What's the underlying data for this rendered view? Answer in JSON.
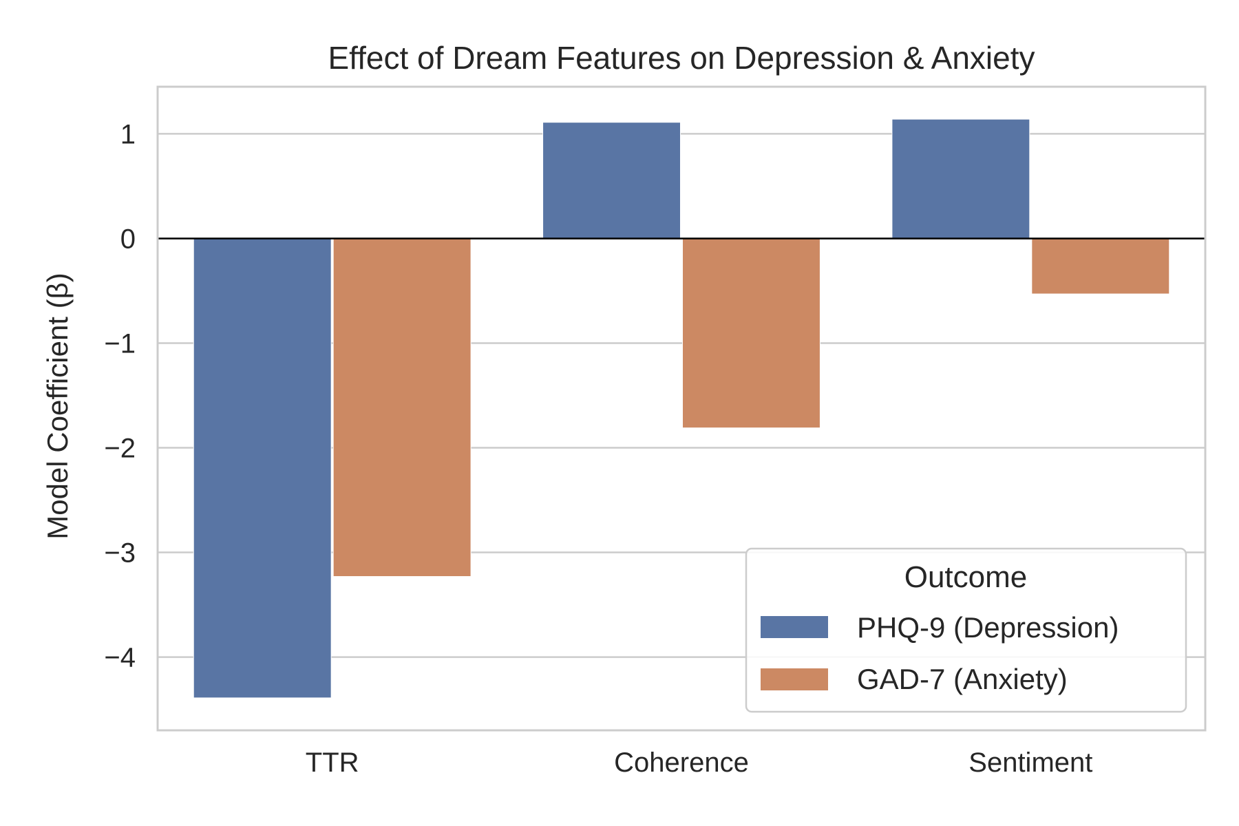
{
  "chart_data": {
    "type": "bar",
    "title": "Effect of Dream Features on Depression & Anxiety",
    "xlabel": "",
    "ylabel": "Model Coefficient (β)",
    "categories": [
      "TTR",
      "Coherence",
      "Sentiment"
    ],
    "series": [
      {
        "name": "PHQ-9 (Depression)",
        "color": "#5975a4",
        "values": [
          -4.39,
          1.11,
          1.14
        ]
      },
      {
        "name": "GAD-7 (Anxiety)",
        "color": "#cc8963",
        "values": [
          -3.23,
          -1.81,
          -0.53
        ]
      }
    ],
    "ylim": [
      -4.7,
      1.45
    ],
    "yticks": [
      1,
      0,
      -1,
      -2,
      -3,
      -4
    ],
    "ytick_labels": [
      "1",
      "0",
      "−1",
      "−2",
      "−3",
      "−4"
    ],
    "grid": true,
    "legend": {
      "title": "Outcome",
      "placement": "lower-right"
    }
  }
}
